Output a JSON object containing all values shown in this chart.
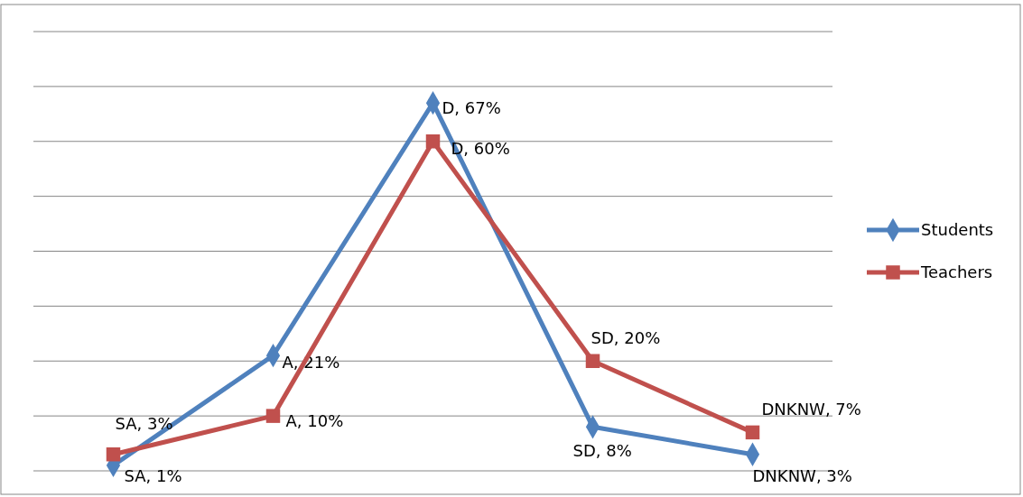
{
  "chart_data": {
    "type": "line",
    "categories": [
      null,
      null,
      null,
      null,
      null
    ],
    "ylim": [
      0,
      80
    ],
    "yticks": [
      0,
      10,
      20,
      30,
      40,
      50,
      60,
      70,
      80
    ],
    "tick_labels": false,
    "grid": "y",
    "legend": "right",
    "series": [
      {
        "name": "Students",
        "color": "#4f81bd",
        "marker": "diamond",
        "values": [
          1,
          21,
          67,
          8,
          3
        ],
        "value_labels": [
          "SA, 1%",
          "A, 21%",
          "D, 67%",
          "SD, 8%",
          "DNKNW, 3%"
        ]
      },
      {
        "name": "Teachers",
        "color": "#c0504d",
        "marker": "square",
        "values": [
          3,
          10,
          60,
          20,
          7
        ],
        "value_labels": [
          "SA, 3%",
          "A, 10%",
          "D, 60%",
          "SD, 20%",
          "DNKNW, 7%"
        ]
      }
    ]
  }
}
